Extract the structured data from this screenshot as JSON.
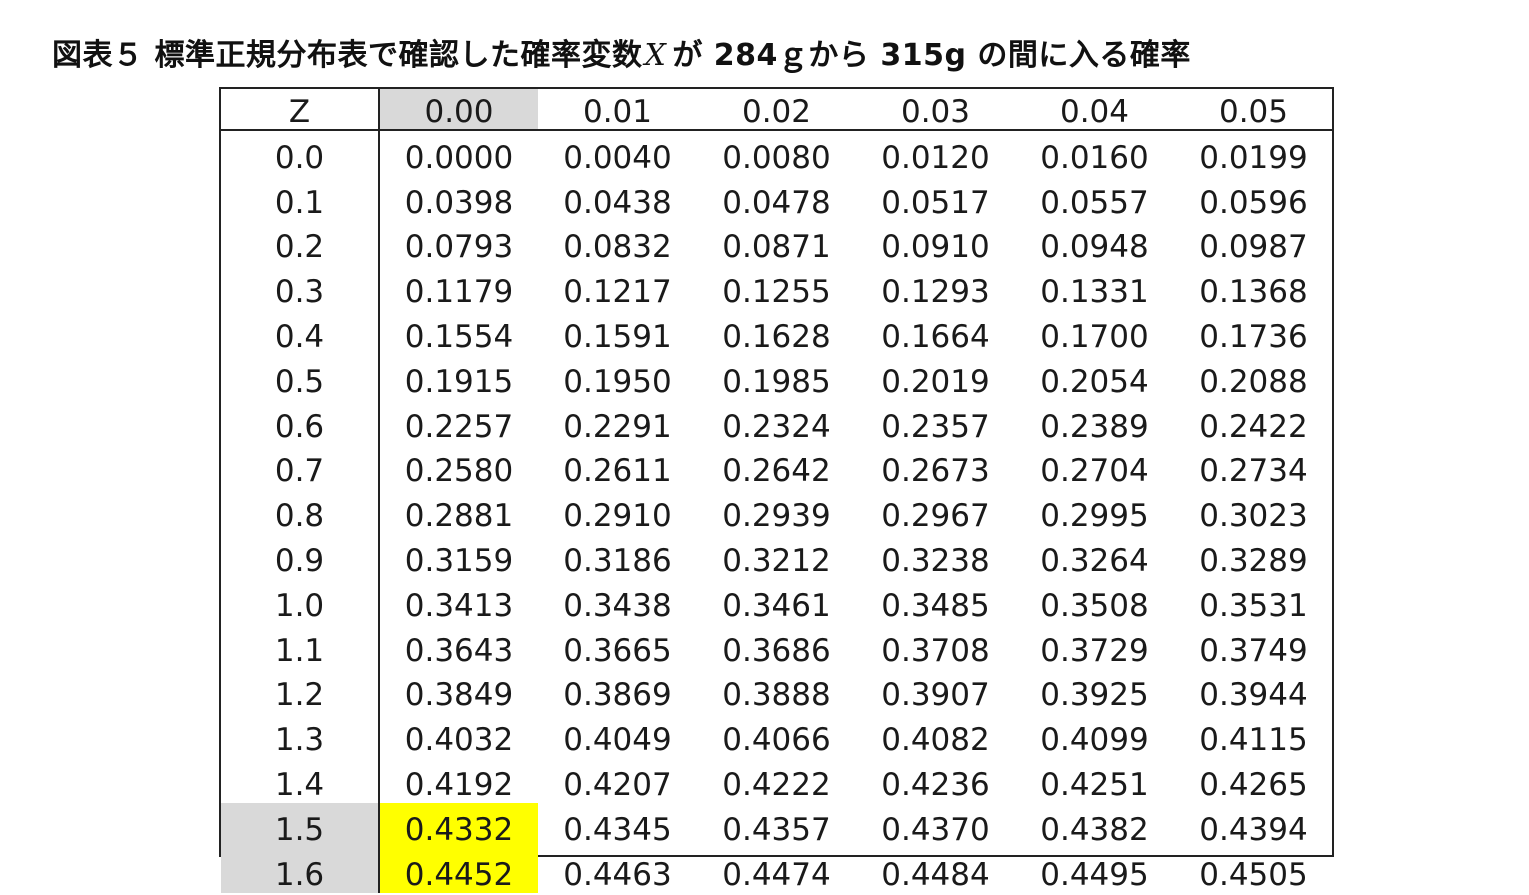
{
  "title": {
    "prefix": "図表５ 標準正規分布表で確認した確率変数",
    "variable": "X",
    "suffix": "が 284ｇから 315g の間に入る確率"
  },
  "table": {
    "z_header": "Z",
    "columns": [
      "0.00",
      "0.01",
      "0.02",
      "0.03",
      "0.04",
      "0.05"
    ],
    "rows": [
      {
        "z": "0.0",
        "values": [
          "0.0000",
          "0.0040",
          "0.0080",
          "0.0120",
          "0.0160",
          "0.0199"
        ]
      },
      {
        "z": "0.1",
        "values": [
          "0.0398",
          "0.0438",
          "0.0478",
          "0.0517",
          "0.0557",
          "0.0596"
        ]
      },
      {
        "z": "0.2",
        "values": [
          "0.0793",
          "0.0832",
          "0.0871",
          "0.0910",
          "0.0948",
          "0.0987"
        ]
      },
      {
        "z": "0.3",
        "values": [
          "0.1179",
          "0.1217",
          "0.1255",
          "0.1293",
          "0.1331",
          "0.1368"
        ]
      },
      {
        "z": "0.4",
        "values": [
          "0.1554",
          "0.1591",
          "0.1628",
          "0.1664",
          "0.1700",
          "0.1736"
        ]
      },
      {
        "z": "0.5",
        "values": [
          "0.1915",
          "0.1950",
          "0.1985",
          "0.2019",
          "0.2054",
          "0.2088"
        ]
      },
      {
        "z": "0.6",
        "values": [
          "0.2257",
          "0.2291",
          "0.2324",
          "0.2357",
          "0.2389",
          "0.2422"
        ]
      },
      {
        "z": "0.7",
        "values": [
          "0.2580",
          "0.2611",
          "0.2642",
          "0.2673",
          "0.2704",
          "0.2734"
        ]
      },
      {
        "z": "0.8",
        "values": [
          "0.2881",
          "0.2910",
          "0.2939",
          "0.2967",
          "0.2995",
          "0.3023"
        ]
      },
      {
        "z": "0.9",
        "values": [
          "0.3159",
          "0.3186",
          "0.3212",
          "0.3238",
          "0.3264",
          "0.3289"
        ]
      },
      {
        "z": "1.0",
        "values": [
          "0.3413",
          "0.3438",
          "0.3461",
          "0.3485",
          "0.3508",
          "0.3531"
        ]
      },
      {
        "z": "1.1",
        "values": [
          "0.3643",
          "0.3665",
          "0.3686",
          "0.3708",
          "0.3729",
          "0.3749"
        ]
      },
      {
        "z": "1.2",
        "values": [
          "0.3849",
          "0.3869",
          "0.3888",
          "0.3907",
          "0.3925",
          "0.3944"
        ]
      },
      {
        "z": "1.3",
        "values": [
          "0.4032",
          "0.4049",
          "0.4066",
          "0.4082",
          "0.4099",
          "0.4115"
        ]
      },
      {
        "z": "1.4",
        "values": [
          "0.4192",
          "0.4207",
          "0.4222",
          "0.4236",
          "0.4251",
          "0.4265"
        ]
      },
      {
        "z": "1.5",
        "values": [
          "0.4332",
          "0.4345",
          "0.4357",
          "0.4370",
          "0.4382",
          "0.4394"
        ]
      },
      {
        "z": "1.6",
        "values": [
          "0.4452",
          "0.4463",
          "0.4474",
          "0.4484",
          "0.4495",
          "0.4505"
        ]
      }
    ],
    "highlights": {
      "grey_header_column": "0.00",
      "grey_z_rows": [
        "1.5",
        "1.6"
      ],
      "yellow_cells": [
        {
          "z": "1.5",
          "column": "0.00"
        },
        {
          "z": "1.6",
          "column": "0.00"
        }
      ],
      "colors": {
        "grey": "#d9d9d9",
        "yellow": "#ffff00",
        "border": "#222222"
      }
    }
  }
}
